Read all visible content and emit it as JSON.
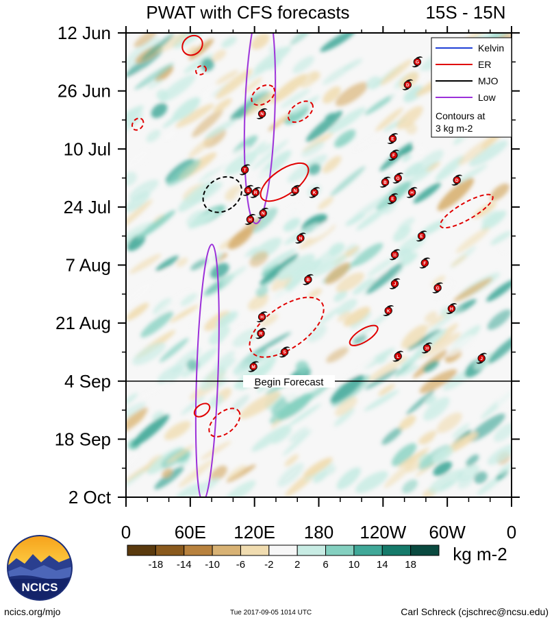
{
  "chart_data": {
    "type": "heatmap",
    "title": "PWAT with CFS forecasts",
    "region": "15S - 15N",
    "x_ticks": [
      "0",
      "60E",
      "120E",
      "180",
      "120W",
      "60W",
      "0"
    ],
    "x_range": [
      0,
      360
    ],
    "y_ticks": [
      "12 Jun",
      "26 Jun",
      "10 Jul",
      "24 Jul",
      "7 Aug",
      "21 Aug",
      "4 Sep",
      "18 Sep",
      "2 Oct"
    ],
    "y_range_days": [
      0,
      112
    ],
    "forecast_line_label": "Begin Forecast",
    "forecast_start_day": 84,
    "colorbar": {
      "unit": "kg m-2",
      "tick_labels": [
        "-18",
        "-14",
        "-10",
        "-6",
        "-2",
        "2",
        "6",
        "10",
        "14",
        "18"
      ],
      "colors": [
        "#5a3a0e",
        "#8a5a1e",
        "#b8823e",
        "#d8b274",
        "#f0dcb0",
        "#f7f7f7",
        "#c8ece4",
        "#84d0c0",
        "#40a898",
        "#157a6a",
        "#0a4a40"
      ]
    },
    "legend": {
      "entries": [
        {
          "label": "Kelvin",
          "color": "#1f3fd6",
          "style": "solid"
        },
        {
          "label": "ER",
          "color": "#e00000",
          "style": "solid"
        },
        {
          "label": "MJO",
          "color": "#000000",
          "style": "solid"
        },
        {
          "label": "Low",
          "color": "#9b30d9",
          "style": "solid"
        }
      ],
      "note_line1": "Contours at",
      "note_line2": "3 kg m-2",
      "position": "top-right"
    },
    "storms": [
      {
        "label": "G",
        "lon": 272,
        "day": 7
      },
      {
        "label": "D",
        "lon": 263,
        "day": 12.5
      },
      {
        "label": "N",
        "lon": 127,
        "day": 19.5
      },
      {
        "label": "E",
        "lon": 249,
        "day": 25.5
      },
      {
        "label": "F",
        "lon": 250,
        "day": 29.5
      },
      {
        "label": "T",
        "lon": 111,
        "day": 33
      },
      {
        "label": "S",
        "lon": 114,
        "day": 38
      },
      {
        "label": "R",
        "lon": 121,
        "day": 38.5
      },
      {
        "label": "N",
        "lon": 158,
        "day": 38
      },
      {
        "label": "K",
        "lon": 176,
        "day": 38.5
      },
      {
        "label": "B",
        "lon": 242,
        "day": 36
      },
      {
        "label": "G",
        "lon": 254,
        "day": 35
      },
      {
        "label": "H",
        "lon": 267,
        "day": 38.5
      },
      {
        "label": "D",
        "lon": 309,
        "day": 35.5
      },
      {
        "label": "E",
        "lon": 249,
        "day": 40
      },
      {
        "label": "N",
        "lon": 128,
        "day": 43.5
      },
      {
        "label": "H",
        "lon": 116,
        "day": 45
      },
      {
        "label": "N",
        "lon": 163,
        "day": 49.5
      },
      {
        "label": "E",
        "lon": 276,
        "day": 49
      },
      {
        "label": "11",
        "lon": 251,
        "day": 53.5
      },
      {
        "label": "F",
        "lon": 279,
        "day": 55.5
      },
      {
        "label": "B",
        "lon": 170,
        "day": 59.5
      },
      {
        "label": "J",
        "lon": 251,
        "day": 60.5
      },
      {
        "label": "G",
        "lon": 291,
        "day": 61.5
      },
      {
        "label": "K",
        "lon": 245,
        "day": 67
      },
      {
        "label": "H",
        "lon": 304,
        "day": 66.5
      },
      {
        "label": "H",
        "lon": 127,
        "day": 68.5
      },
      {
        "label": "R",
        "lon": 126,
        "day": 72.5
      },
      {
        "label": "S",
        "lon": 148,
        "day": 77
      },
      {
        "label": "L",
        "lon": 254,
        "day": 78
      },
      {
        "label": "10",
        "lon": 281,
        "day": 76
      },
      {
        "label": "J",
        "lon": 332,
        "day": 78.5
      },
      {
        "label": "M",
        "lon": 119,
        "day": 80.5
      },
      {
        "label": "G",
        "lon": 124,
        "day": 84.5
      }
    ],
    "low_contours": [
      {
        "lon": 125,
        "day": 19,
        "rlon": 14,
        "rday": 27
      },
      {
        "lon": 76,
        "day": 82,
        "rlon": 10,
        "rday": 31
      }
    ],
    "mjo_contours": [
      {
        "lon": 90,
        "day": 39,
        "rlon": 15,
        "rday": 5,
        "angle": 55,
        "dashed": true
      }
    ],
    "er_contours": [
      {
        "lon": 62,
        "day": 3,
        "rlon": 10,
        "rday": 2.2,
        "angle": -40,
        "dashed": false
      },
      {
        "lon": 70,
        "day": 9,
        "rlon": 5,
        "rday": 1,
        "angle": -30,
        "dashed": true
      },
      {
        "lon": 128,
        "day": 15,
        "rlon": 12,
        "rday": 2,
        "angle": -35,
        "dashed": true
      },
      {
        "lon": 163,
        "day": 19,
        "rlon": 13,
        "rday": 2,
        "angle": -35,
        "dashed": true
      },
      {
        "lon": 11,
        "day": 22,
        "rlon": 6,
        "rday": 1.2,
        "angle": -50,
        "dashed": true
      },
      {
        "lon": 148,
        "day": 36,
        "rlon": 26,
        "rday": 3,
        "angle": -35,
        "dashed": false
      },
      {
        "lon": 318,
        "day": 43,
        "rlon": 28,
        "rday": 2,
        "angle": -30,
        "dashed": true
      },
      {
        "lon": 150,
        "day": 71,
        "rlon": 40,
        "rday": 5,
        "angle": -35,
        "dashed": true
      },
      {
        "lon": 222,
        "day": 73,
        "rlon": 15,
        "rday": 1.5,
        "angle": -32,
        "dashed": false
      },
      {
        "lon": 71,
        "day": 91,
        "rlon": 8,
        "rday": 1.3,
        "angle": -35,
        "dashed": false
      },
      {
        "lon": 92,
        "day": 94,
        "rlon": 17,
        "rday": 2.5,
        "angle": -40,
        "dashed": true
      }
    ]
  },
  "footer": {
    "url": "ncics.org/mjo",
    "timestamp": "Tue 2017-09-05 1014 UTC",
    "author": "Carl Schreck (cjschrec@ncsu.edu)"
  },
  "logo": {
    "text": "NCICS"
  }
}
